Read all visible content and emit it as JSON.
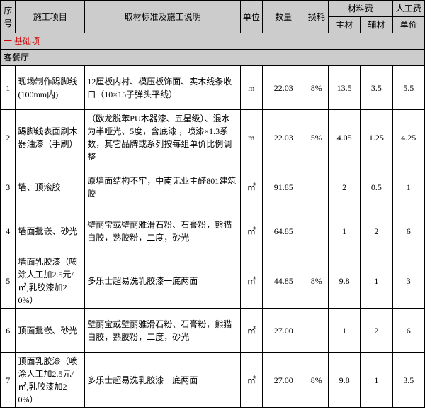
{
  "header": {
    "seq": "序号",
    "proj": "施工项目",
    "desc": "取材标准及施工说明",
    "unit": "单位",
    "qty": "数量",
    "loss": "损耗",
    "materialCost": "材料费",
    "laborCost": "人工费",
    "mat1": "主材",
    "mat2": "辅材",
    "labor": "单价"
  },
  "section1": {
    "num": "一",
    "title": "基础项"
  },
  "section2": "客餐厅",
  "rows": [
    {
      "seq": "1",
      "proj": "现场制作踢脚线(100mm内)",
      "desc": "12厘板内衬、模压板饰面、实木线条收口（10×15子弹头平线）",
      "unit": "m",
      "qty": "22.03",
      "loss": "8%",
      "mat1": "13.5",
      "mat2": "3.5",
      "labor": "5.5"
    },
    {
      "seq": "2",
      "proj": "踢脚线表面刷木器油漆（手刷）",
      "desc": "（欧龙脱苯PU木器漆、五星级）、混水为半哑光、5度，含底漆 ，喷漆×1.3系数，其它品牌或系列按每组单价比例调整",
      "unit": "m",
      "qty": "22.03",
      "loss": "5%",
      "mat1": "4.05",
      "mat2": "1.25",
      "labor": "4.25"
    },
    {
      "seq": "3",
      "proj": "墙、顶滚胶",
      "desc": "原墙面结构不牢，中南无业主醛801建筑胶",
      "unit": "㎡",
      "qty": "91.85",
      "loss": "",
      "mat1": "2",
      "mat2": "0.5",
      "labor": "1"
    },
    {
      "seq": "4",
      "proj": "墙面批嵌、砂光",
      "desc": "壁丽宝或壁丽雅滑石粉、石膏粉，熊猫白胶，熟胶粉，二度，砂光",
      "unit": "㎡",
      "qty": "64.85",
      "loss": "",
      "mat1": "1",
      "mat2": "2",
      "labor": "6"
    },
    {
      "seq": "5",
      "proj": "墙面乳胶漆（喷涂人工加2.5元/㎡,乳胶漆加20%）",
      "desc": "多乐士超易洗乳胶漆一底两面",
      "unit": "㎡",
      "qty": "44.85",
      "loss": "8%",
      "mat1": "9.8",
      "mat2": "1",
      "labor": "3"
    },
    {
      "seq": "6",
      "proj": "顶面批嵌、砂光",
      "desc": "壁丽宝或壁丽雅滑石粉、石膏粉，熊猫白胶，熟胶粉，二度，砂光",
      "unit": "㎡",
      "qty": "27.00",
      "loss": "",
      "mat1": "1",
      "mat2": "2",
      "labor": "6"
    },
    {
      "seq": "7",
      "proj": "顶面乳胶漆（喷涂人工加2.5元/㎡,乳胶漆加20%）",
      "desc": "多乐士超易洗乳胶漆一底两面",
      "unit": "㎡",
      "qty": "27.00",
      "loss": "8%",
      "mat1": "9.8",
      "mat2": "1",
      "labor": "3.5"
    }
  ]
}
